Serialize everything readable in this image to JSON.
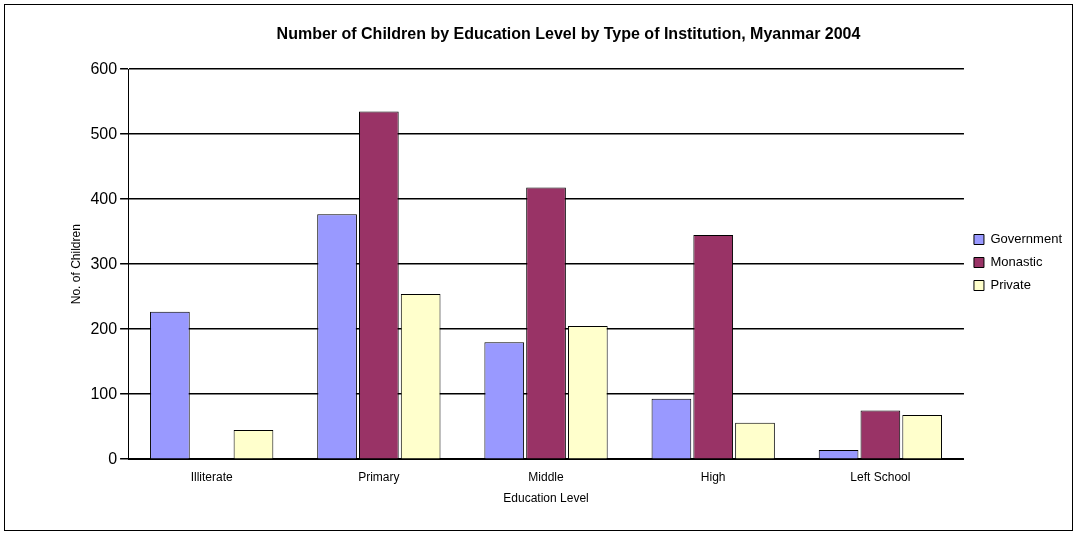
{
  "chart_data": {
    "type": "bar",
    "title": "Number of Children by Education Level by Type of Institution, Myanmar 2004",
    "xlabel": "Education Level",
    "ylabel": "No. of Children",
    "categories": [
      "Illiterate",
      "Primary",
      "Middle",
      "High",
      "Left School"
    ],
    "series": [
      {
        "name": "Government",
        "color": "#9999ff",
        "values": [
          227,
          377,
          180,
          93,
          14
        ]
      },
      {
        "name": "Monastic",
        "color": "#993366",
        "values": [
          0,
          535,
          418,
          345,
          75
        ]
      },
      {
        "name": "Private",
        "color": "#ffffcc",
        "values": [
          45,
          254,
          205,
          56,
          68
        ]
      }
    ],
    "ylim": [
      0,
      600
    ],
    "yticks": [
      0,
      100,
      200,
      300,
      400,
      500,
      600
    ],
    "grid": "y",
    "legend": "right"
  }
}
